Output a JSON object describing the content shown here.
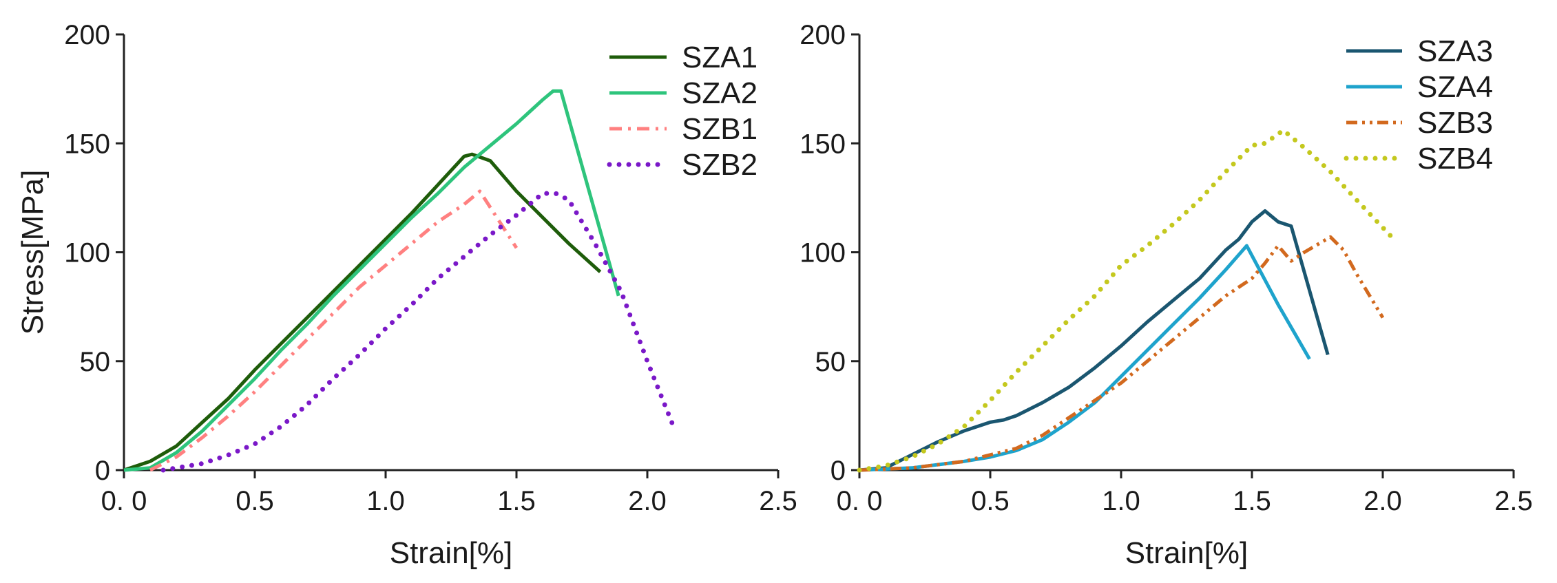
{
  "chart_data": [
    {
      "type": "line",
      "xlabel": "Strain[%]",
      "ylabel": "Stress[MPa]",
      "xlim": [
        0,
        2.5
      ],
      "ylim": [
        0,
        200
      ],
      "xticks": [
        0,
        0.5,
        1.0,
        1.5,
        2.0,
        2.5
      ],
      "xtick_labels": [
        "0. 0",
        "0.5",
        "1.0",
        "1.5",
        "2.0",
        "2.5"
      ],
      "yticks": [
        0,
        50,
        100,
        150,
        200
      ],
      "ytick_labels": [
        "0",
        "50",
        "100",
        "150",
        "200"
      ],
      "legend_position": "top-right",
      "series": [
        {
          "name": "SZA1",
          "color": "#1e5c0a",
          "style": "solid",
          "points": [
            [
              0,
              0
            ],
            [
              0.1,
              4
            ],
            [
              0.2,
              11
            ],
            [
              0.3,
              22
            ],
            [
              0.4,
              33
            ],
            [
              0.5,
              46
            ],
            [
              0.6,
              58
            ],
            [
              0.7,
              70
            ],
            [
              0.8,
              82
            ],
            [
              0.9,
              94
            ],
            [
              1.0,
              106
            ],
            [
              1.1,
              118
            ],
            [
              1.2,
              131
            ],
            [
              1.3,
              144
            ],
            [
              1.33,
              145
            ],
            [
              1.4,
              142
            ],
            [
              1.5,
              128
            ],
            [
              1.6,
              116
            ],
            [
              1.7,
              104
            ],
            [
              1.82,
              91
            ]
          ]
        },
        {
          "name": "SZA2",
          "color": "#2ec47c",
          "style": "solid",
          "points": [
            [
              0,
              0
            ],
            [
              0.1,
              1
            ],
            [
              0.2,
              8
            ],
            [
              0.3,
              18
            ],
            [
              0.4,
              30
            ],
            [
              0.5,
              42
            ],
            [
              0.6,
              55
            ],
            [
              0.7,
              67
            ],
            [
              0.8,
              80
            ],
            [
              0.9,
              92
            ],
            [
              1.0,
              104
            ],
            [
              1.1,
              116
            ],
            [
              1.2,
              127
            ],
            [
              1.3,
              139
            ],
            [
              1.4,
              149
            ],
            [
              1.5,
              159
            ],
            [
              1.6,
              170
            ],
            [
              1.64,
              174
            ],
            [
              1.67,
              174
            ],
            [
              1.89,
              80
            ]
          ]
        },
        {
          "name": "SZB1",
          "color": "#ff8080",
          "style": "dashdot",
          "points": [
            [
              0.1,
              0
            ],
            [
              0.2,
              6
            ],
            [
              0.3,
              15
            ],
            [
              0.4,
              25
            ],
            [
              0.5,
              36
            ],
            [
              0.6,
              48
            ],
            [
              0.7,
              60
            ],
            [
              0.8,
              72
            ],
            [
              0.9,
              84
            ],
            [
              1.0,
              94
            ],
            [
              1.1,
              104
            ],
            [
              1.2,
              114
            ],
            [
              1.3,
              122
            ],
            [
              1.36,
              128
            ],
            [
              1.43,
              115
            ],
            [
              1.5,
              102
            ]
          ]
        },
        {
          "name": "SZB2",
          "color": "#7a18c8",
          "style": "dotted",
          "points": [
            [
              0.15,
              0
            ],
            [
              0.3,
              3
            ],
            [
              0.4,
              7
            ],
            [
              0.5,
              12
            ],
            [
              0.6,
              20
            ],
            [
              0.7,
              30
            ],
            [
              0.8,
              42
            ],
            [
              0.9,
              53
            ],
            [
              1.0,
              65
            ],
            [
              1.1,
              76
            ],
            [
              1.2,
              88
            ],
            [
              1.3,
              98
            ],
            [
              1.4,
              108
            ],
            [
              1.5,
              117
            ],
            [
              1.6,
              127
            ],
            [
              1.65,
              127
            ],
            [
              1.7,
              124
            ],
            [
              1.8,
              104
            ],
            [
              1.9,
              82
            ],
            [
              2.0,
              50
            ],
            [
              2.1,
              20
            ]
          ]
        }
      ]
    },
    {
      "type": "line",
      "xlabel": "Strain[%]",
      "ylabel": "",
      "xlim": [
        0,
        2.5
      ],
      "ylim": [
        0,
        200
      ],
      "xticks": [
        0,
        0.5,
        1.0,
        1.5,
        2.0,
        2.5
      ],
      "xtick_labels": [
        "0. 0",
        "0.5",
        "1.0",
        "1.5",
        "2.0",
        "2.5"
      ],
      "yticks": [
        0,
        50,
        100,
        150,
        200
      ],
      "ytick_labels": [
        "0",
        "50",
        "100",
        "150",
        "200"
      ],
      "legend_position": "top-right",
      "series": [
        {
          "name": "SZA3",
          "color": "#1a5670",
          "style": "solid",
          "points": [
            [
              0,
              0
            ],
            [
              0.1,
              1
            ],
            [
              0.2,
              7
            ],
            [
              0.3,
              13
            ],
            [
              0.4,
              18
            ],
            [
              0.5,
              22
            ],
            [
              0.55,
              23
            ],
            [
              0.6,
              25
            ],
            [
              0.7,
              31
            ],
            [
              0.8,
              38
            ],
            [
              0.9,
              47
            ],
            [
              1.0,
              57
            ],
            [
              1.1,
              68
            ],
            [
              1.2,
              78
            ],
            [
              1.3,
              88
            ],
            [
              1.4,
              101
            ],
            [
              1.45,
              106
            ],
            [
              1.5,
              114
            ],
            [
              1.55,
              119
            ],
            [
              1.6,
              114
            ],
            [
              1.65,
              112
            ],
            [
              1.79,
              53
            ]
          ]
        },
        {
          "name": "SZA4",
          "color": "#1ea3cc",
          "style": "solid",
          "points": [
            [
              0,
              0
            ],
            [
              0.2,
              1
            ],
            [
              0.4,
              4
            ],
            [
              0.5,
              6
            ],
            [
              0.6,
              9
            ],
            [
              0.7,
              14
            ],
            [
              0.8,
              22
            ],
            [
              0.9,
              31
            ],
            [
              1.0,
              43
            ],
            [
              1.1,
              55
            ],
            [
              1.2,
              67
            ],
            [
              1.3,
              79
            ],
            [
              1.4,
              92
            ],
            [
              1.48,
              103
            ],
            [
              1.6,
              76
            ],
            [
              1.72,
              51
            ]
          ]
        },
        {
          "name": "SZB3",
          "color": "#d2691e",
          "style": "dashdotdot",
          "points": [
            [
              0,
              0
            ],
            [
              0.2,
              1
            ],
            [
              0.4,
              4
            ],
            [
              0.5,
              7
            ],
            [
              0.6,
              10
            ],
            [
              0.7,
              16
            ],
            [
              0.8,
              24
            ],
            [
              0.9,
              32
            ],
            [
              1.0,
              40
            ],
            [
              1.1,
              50
            ],
            [
              1.2,
              60
            ],
            [
              1.3,
              70
            ],
            [
              1.4,
              80
            ],
            [
              1.5,
              88
            ],
            [
              1.55,
              95
            ],
            [
              1.6,
              103
            ],
            [
              1.65,
              96
            ],
            [
              1.7,
              100
            ],
            [
              1.8,
              107
            ],
            [
              1.85,
              101
            ],
            [
              1.9,
              90
            ],
            [
              2.0,
              70
            ]
          ]
        },
        {
          "name": "SZB4",
          "color": "#c4c81e",
          "style": "dotted",
          "points": [
            [
              0,
              0
            ],
            [
              0.1,
              2
            ],
            [
              0.2,
              6
            ],
            [
              0.3,
              12
            ],
            [
              0.4,
              20
            ],
            [
              0.5,
              32
            ],
            [
              0.6,
              45
            ],
            [
              0.7,
              57
            ],
            [
              0.8,
              69
            ],
            [
              0.9,
              80
            ],
            [
              1.0,
              94
            ],
            [
              1.1,
              103
            ],
            [
              1.2,
              113
            ],
            [
              1.3,
              124
            ],
            [
              1.4,
              137
            ],
            [
              1.5,
              149
            ],
            [
              1.55,
              150
            ],
            [
              1.62,
              156
            ],
            [
              1.7,
              148
            ],
            [
              1.8,
              137
            ],
            [
              1.9,
              124
            ],
            [
              2.05,
              105
            ]
          ]
        }
      ]
    }
  ]
}
